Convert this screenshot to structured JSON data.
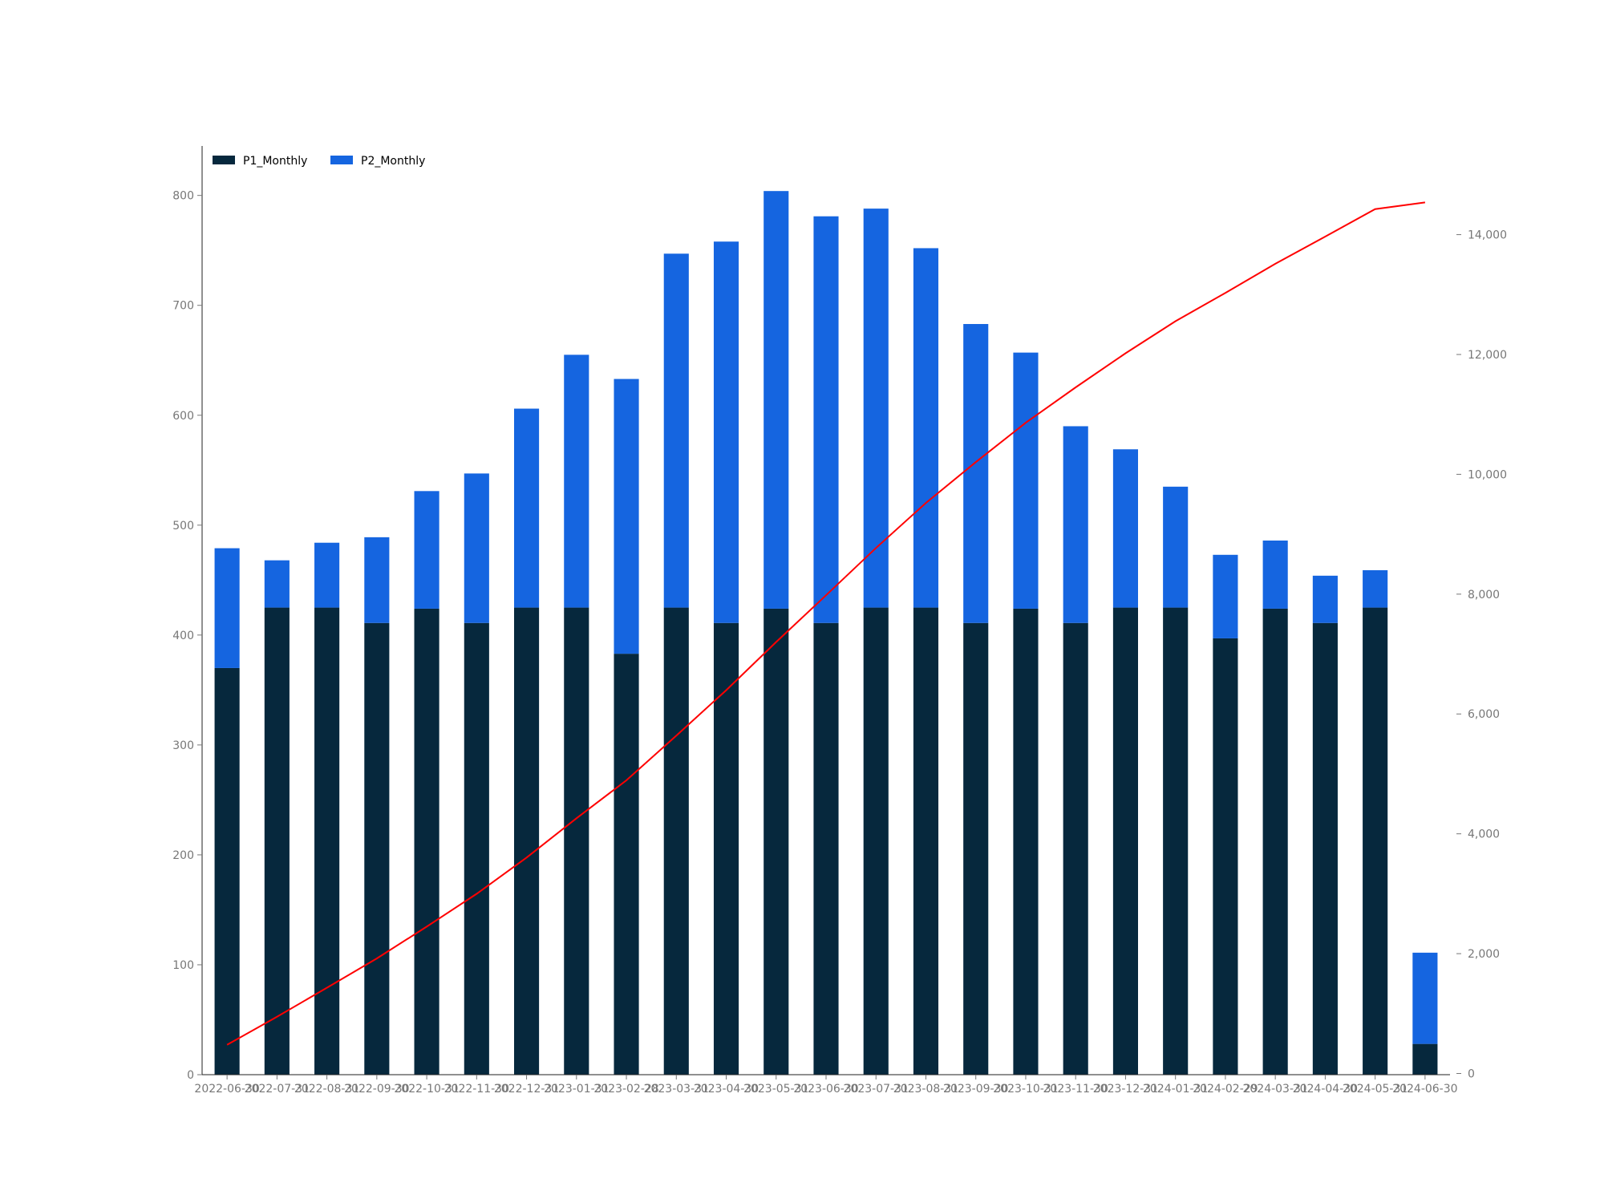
{
  "chart_data": {
    "type": "bar",
    "stacked": true,
    "categories": [
      "2022-06-30",
      "2022-07-31",
      "2022-08-31",
      "2022-09-30",
      "2022-10-31",
      "2022-11-30",
      "2022-12-31",
      "2023-01-31",
      "2023-02-28",
      "2023-03-31",
      "2023-04-30",
      "2023-05-31",
      "2023-06-30",
      "2023-07-31",
      "2023-08-31",
      "2023-09-30",
      "2023-10-31",
      "2023-11-30",
      "2023-12-31",
      "2024-01-31",
      "2024-02-29",
      "2024-03-31",
      "2024-04-30",
      "2024-05-31",
      "2024-06-30"
    ],
    "series": [
      {
        "name": "P1_Monthly",
        "color": "#06283d",
        "values": [
          370,
          425,
          425,
          411,
          424,
          411,
          425,
          425,
          383,
          425,
          411,
          424,
          411,
          425,
          425,
          411,
          424,
          411,
          425,
          425,
          397,
          424,
          411,
          425,
          28
        ]
      },
      {
        "name": "P2_Monthly",
        "color": "#1565e0",
        "values": [
          109,
          43,
          59,
          78,
          107,
          136,
          181,
          230,
          250,
          322,
          347,
          380,
          370,
          363,
          327,
          272,
          233,
          179,
          144,
          110,
          76,
          62,
          43,
          34,
          83
        ]
      }
    ],
    "line_series": {
      "color": "#ff0000",
      "axis": "right",
      "values": [
        479,
        947,
        1431,
        1920,
        2451,
        2998,
        3604,
        4259,
        4892,
        5639,
        6397,
        7201,
        7982,
        8770,
        9522,
        10204,
        10861,
        11451,
        12020,
        12555,
        13028,
        13514,
        13968,
        14427,
        14538
      ]
    },
    "y_left": {
      "ylim": [
        0,
        845
      ],
      "ticks": [
        0,
        100,
        200,
        300,
        400,
        500,
        600,
        700,
        800
      ]
    },
    "y_right": {
      "ylim": [
        -20,
        15480
      ],
      "ticks": [
        0,
        2000,
        4000,
        6000,
        8000,
        10000,
        12000,
        14000
      ],
      "tick_labels": [
        "0",
        "2,000",
        "4,000",
        "6,000",
        "8,000",
        "10,000",
        "12,000",
        "14,000"
      ]
    },
    "grid": false,
    "legend": {
      "placement": "upper-left",
      "entries": [
        "P1_Monthly",
        "P2_Monthly"
      ]
    },
    "title": "",
    "xlabel": "",
    "ylabel": ""
  }
}
